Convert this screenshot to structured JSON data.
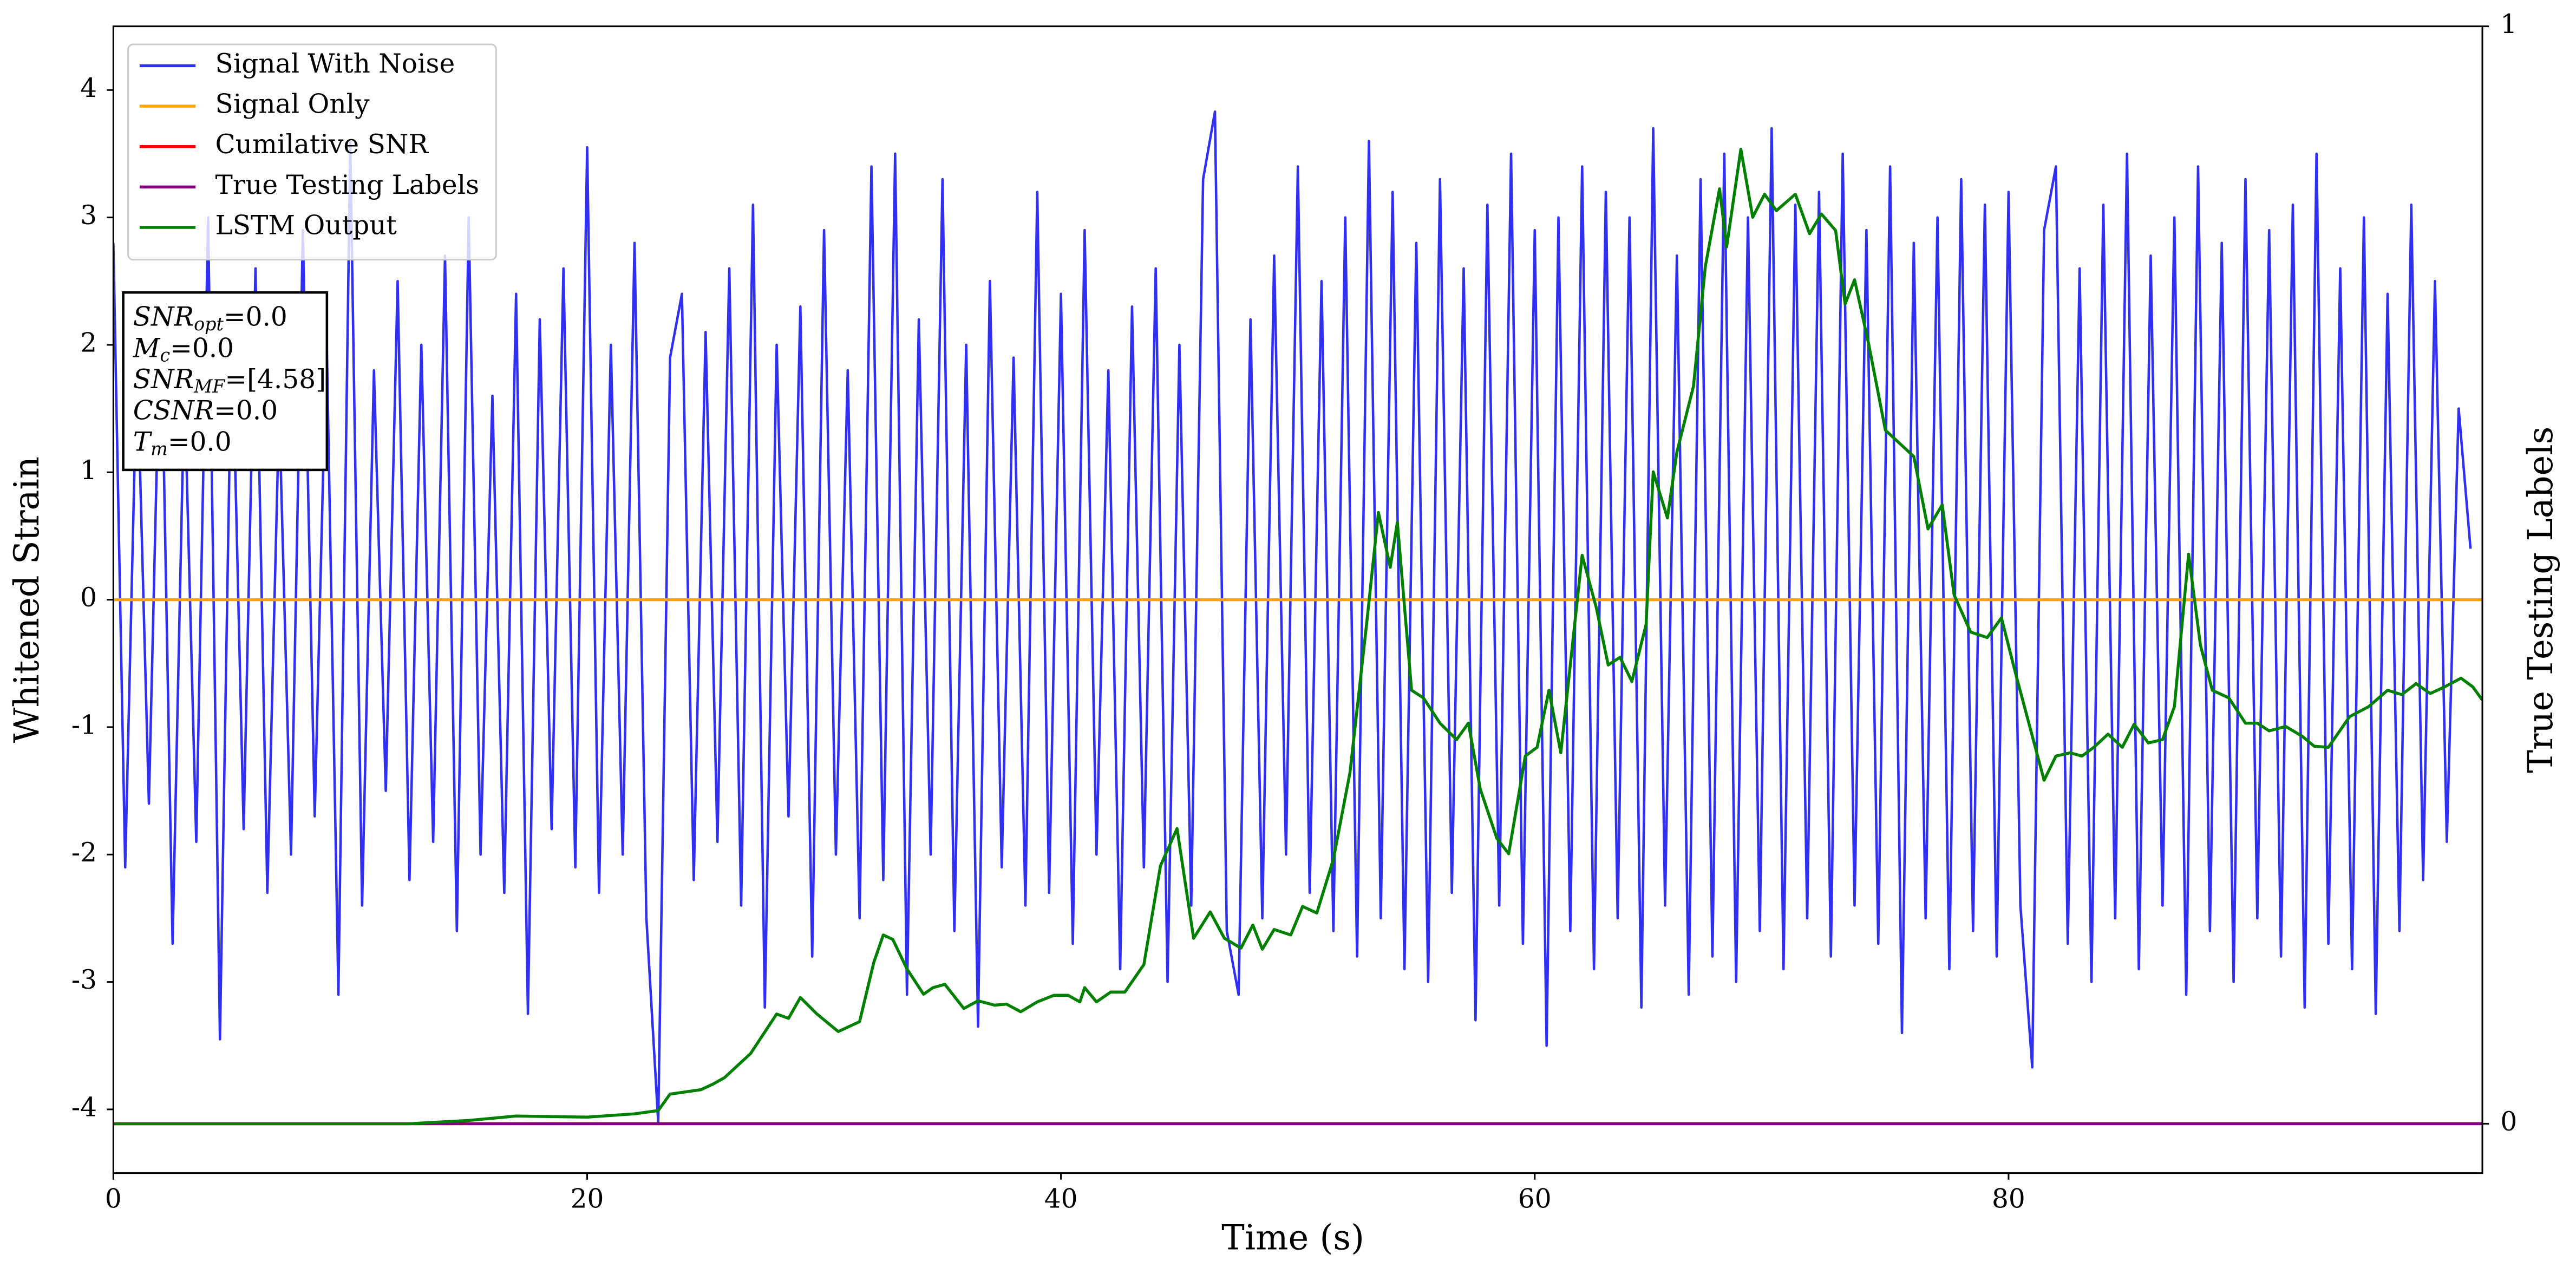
{
  "chart_data": {
    "type": "line",
    "xlabel": "Time (s)",
    "ylabel": "Whitened Strain",
    "y2label": "True Testing Labels",
    "xlim": [
      0,
      100
    ],
    "ylim": [
      -4.5,
      4.5
    ],
    "y2lim": [
      -0.045,
      1.0
    ],
    "xticks": [
      0,
      20,
      40,
      60,
      80
    ],
    "yticks": [
      -4,
      -3,
      -2,
      -1,
      0,
      1,
      2,
      3,
      4
    ],
    "y2ticks": [
      0,
      1
    ],
    "legend": "upper left",
    "annotation_lines": [
      {
        "base": "SNR",
        "sub": "opt",
        "rest": "=0.0"
      },
      {
        "base": "M",
        "sub": "c",
        "rest": "=0.0"
      },
      {
        "base": "SNR",
        "sub": "MF",
        "rest": "=[4.58]"
      },
      {
        "base": "CSNR",
        "rest": "=0.0"
      },
      {
        "base": "T",
        "sub": "m",
        "rest": "=0.0"
      }
    ],
    "series": [
      {
        "name": "Signal With Noise",
        "color": "#3030f5",
        "x": [
          0,
          0.5,
          1,
          1.5,
          2,
          2.5,
          3,
          3.5,
          4,
          4.5,
          5,
          5.5,
          6,
          6.5,
          7,
          7.5,
          8,
          8.5,
          9,
          9.5,
          10,
          10.5,
          11,
          11.5,
          12,
          12.5,
          13,
          13.5,
          14,
          14.5,
          15,
          15.5,
          16,
          16.5,
          17,
          17.5,
          18,
          18.5,
          19,
          19.5,
          20,
          20.5,
          21,
          21.5,
          22,
          22.5,
          23,
          23.5,
          24,
          24.5,
          25,
          25.5,
          26,
          26.5,
          27,
          27.5,
          28,
          28.5,
          29,
          29.5,
          30,
          30.5,
          31,
          31.5,
          32,
          32.5,
          33,
          33.5,
          34,
          34.5,
          35,
          35.5,
          36,
          36.5,
          37,
          37.5,
          38,
          38.5,
          39,
          39.5,
          40,
          40.5,
          41,
          41.5,
          42,
          42.5,
          43,
          43.5,
          44,
          44.5,
          45,
          45.5,
          46,
          46.5,
          47,
          47.5,
          48,
          48.5,
          49,
          49.5,
          50,
          50.5,
          51,
          51.5,
          52,
          52.5,
          53,
          53.5,
          54,
          54.5,
          55,
          55.5,
          56,
          56.5,
          57,
          57.5,
          58,
          58.5,
          59,
          59.5,
          60,
          60.5,
          61,
          61.5,
          62,
          62.5,
          63,
          63.5,
          64,
          64.5,
          65,
          65.5,
          66,
          66.5,
          67,
          67.5,
          68,
          68.5,
          69,
          69.5,
          70,
          70.5,
          71,
          71.5,
          72,
          72.5,
          73,
          73.5,
          74,
          74.5,
          75,
          75.5,
          76,
          76.5,
          77,
          77.5,
          78,
          78.5,
          79,
          79.5,
          80,
          80.5,
          81,
          81.5,
          82,
          82.5,
          83,
          83.5,
          84,
          84.5,
          85,
          85.5,
          86,
          86.5,
          87,
          87.5,
          88,
          88.5,
          89,
          89.5,
          90,
          90.5,
          91,
          91.5,
          92,
          92.5,
          93,
          93.5,
          94,
          94.5,
          95,
          95.5,
          96,
          96.5,
          97,
          97.5,
          98,
          98.5,
          99,
          99.5
        ],
        "values": [
          2.8,
          -2.1,
          1.9,
          -1.6,
          2.4,
          -2.7,
          1.7,
          -1.9,
          3.0,
          -3.45,
          2.2,
          -1.8,
          2.6,
          -2.3,
          1.5,
          -2.0,
          2.9,
          -1.7,
          2.1,
          -3.1,
          3.6,
          -2.4,
          1.8,
          -1.5,
          2.5,
          -2.2,
          2.0,
          -1.9,
          2.7,
          -2.6,
          3.0,
          -2.0,
          1.6,
          -2.3,
          2.4,
          -3.25,
          2.2,
          -1.8,
          2.6,
          -2.1,
          3.55,
          -2.3,
          2.0,
          -2.0,
          2.8,
          -2.5,
          -4.1,
          1.9,
          2.4,
          -2.2,
          2.1,
          -1.9,
          2.6,
          -2.4,
          3.1,
          -3.2,
          2.0,
          -1.7,
          2.3,
          -2.8,
          2.9,
          -2.0,
          1.8,
          -2.5,
          3.4,
          -2.2,
          3.5,
          -3.1,
          2.2,
          -2.0,
          3.3,
          -2.6,
          2.0,
          -3.35,
          2.5,
          -2.1,
          1.9,
          -2.4,
          3.2,
          -2.3,
          2.4,
          -2.7,
          2.9,
          -2.0,
          1.8,
          -2.9,
          2.3,
          -2.1,
          2.6,
          -3.0,
          2.0,
          -2.4,
          3.3,
          3.83,
          -2.6,
          -3.1,
          2.2,
          -2.5,
          2.7,
          -2.0,
          3.4,
          -2.3,
          2.5,
          -2.6,
          3.0,
          -2.8,
          3.6,
          -2.5,
          3.2,
          -2.9,
          2.8,
          -3.0,
          3.3,
          -2.3,
          2.6,
          -3.3,
          3.1,
          -2.4,
          3.5,
          -2.7,
          2.9,
          -3.5,
          3.0,
          -2.6,
          3.4,
          -2.9,
          3.2,
          -2.5,
          3.0,
          -3.2,
          3.7,
          -2.4,
          2.7,
          -3.1,
          3.3,
          -2.8,
          3.5,
          -3.0,
          3.0,
          -2.6,
          3.7,
          -2.9,
          3.1,
          -2.5,
          3.2,
          -2.8,
          3.5,
          -2.4,
          2.9,
          -2.7,
          3.4,
          -3.4,
          2.8,
          -2.5,
          3.0,
          -2.9,
          3.3,
          -2.6,
          3.1,
          -2.8,
          3.2,
          -2.4,
          -3.67,
          2.9,
          3.4,
          -2.7,
          2.6,
          -3.0,
          3.1,
          -2.5,
          3.5,
          -2.9,
          2.7,
          -2.4,
          3.0,
          -3.1,
          3.4,
          -2.6,
          2.8,
          -3.0,
          3.3,
          -2.5,
          2.9,
          -2.8,
          3.1,
          -3.2,
          3.5,
          -2.7,
          2.6,
          -2.9,
          3.0,
          -3.25,
          2.4,
          -2.6,
          3.1,
          -2.2,
          2.5,
          -1.9,
          1.5,
          0.4
        ]
      },
      {
        "name": "Signal Only",
        "color": "#ffa500",
        "x": [
          0,
          100
        ],
        "values": [
          0,
          0
        ]
      },
      {
        "name": "Cumilative SNR",
        "color": "#ff0000",
        "axis": "y2",
        "x": [
          0,
          100
        ],
        "values": [
          0,
          0
        ]
      },
      {
        "name": "True Testing Labels",
        "color": "#800080",
        "axis": "y2",
        "x": [
          0,
          100
        ],
        "values": [
          0,
          0
        ]
      },
      {
        "name": "LSTM Output",
        "color": "#008000",
        "axis": "y2",
        "x": [
          0,
          5,
          10,
          12.5,
          15,
          17,
          20,
          22,
          23,
          23.5,
          24.8,
          25.3,
          25.8,
          26.9,
          28.0,
          28.5,
          29.0,
          29.7,
          30.6,
          31.5,
          32.1,
          32.5,
          32.9,
          33.5,
          34.2,
          34.6,
          35.1,
          35.9,
          36.5,
          37.2,
          37.7,
          38.3,
          39.0,
          39.7,
          40.3,
          40.8,
          41.0,
          41.5,
          42.1,
          42.7,
          43.5,
          44.2,
          44.9,
          45.6,
          46.3,
          46.9,
          47.6,
          48.1,
          48.5,
          49.0,
          49.7,
          50.2,
          50.8,
          51.5,
          52.2,
          52.9,
          53.4,
          53.9,
          54.2,
          54.8,
          55.3,
          56.0,
          56.7,
          57.2,
          57.7,
          58.4,
          58.9,
          59.6,
          60.1,
          60.6,
          61.1,
          62.0,
          62.6,
          63.1,
          63.6,
          64.1,
          64.7,
          65.0,
          65.6,
          66.0,
          66.7,
          67.2,
          67.8,
          68.1,
          68.7,
          69.2,
          69.7,
          70.2,
          71.0,
          71.6,
          72.1,
          72.7,
          73.1,
          73.5,
          74.1,
          74.8,
          75.4,
          76.0,
          76.6,
          77.2,
          77.7,
          78.4,
          79.1,
          79.7,
          80.3,
          81.5,
          82.0,
          82.6,
          83.1,
          83.6,
          84.2,
          84.8,
          85.3,
          85.9,
          86.5,
          87.0,
          87.6,
          88.1,
          88.6,
          89.3,
          90.0,
          90.5,
          91.0,
          91.7,
          92.4,
          92.9,
          93.5,
          94.4,
          95.2,
          96.0,
          96.6,
          97.2,
          97.8,
          98.4,
          99.1,
          99.6,
          100
        ],
        "values": [
          0,
          0,
          0,
          0,
          0.003,
          0.007,
          0.006,
          0.009,
          0.012,
          0.027,
          0.031,
          0.036,
          0.042,
          0.064,
          0.1,
          0.096,
          0.115,
          0.1,
          0.084,
          0.093,
          0.147,
          0.172,
          0.168,
          0.141,
          0.118,
          0.124,
          0.127,
          0.105,
          0.112,
          0.108,
          0.109,
          0.102,
          0.111,
          0.117,
          0.117,
          0.111,
          0.124,
          0.111,
          0.12,
          0.12,
          0.145,
          0.235,
          0.269,
          0.169,
          0.193,
          0.169,
          0.16,
          0.181,
          0.159,
          0.177,
          0.172,
          0.198,
          0.192,
          0.241,
          0.32,
          0.455,
          0.557,
          0.507,
          0.548,
          0.395,
          0.388,
          0.365,
          0.35,
          0.365,
          0.305,
          0.26,
          0.246,
          0.335,
          0.343,
          0.395,
          0.338,
          0.518,
          0.47,
          0.418,
          0.425,
          0.403,
          0.455,
          0.594,
          0.552,
          0.612,
          0.672,
          0.781,
          0.852,
          0.799,
          0.888,
          0.826,
          0.847,
          0.832,
          0.847,
          0.811,
          0.829,
          0.814,
          0.747,
          0.769,
          0.71,
          0.632,
          0.62,
          0.608,
          0.542,
          0.564,
          0.482,
          0.448,
          0.443,
          0.461,
          0.41,
          0.313,
          0.335,
          0.338,
          0.335,
          0.343,
          0.355,
          0.343,
          0.364,
          0.347,
          0.35,
          0.38,
          0.519,
          0.436,
          0.395,
          0.388,
          0.365,
          0.365,
          0.358,
          0.362,
          0.353,
          0.344,
          0.343,
          0.371,
          0.38,
          0.395,
          0.391,
          0.401,
          0.392,
          0.398,
          0.406,
          0.398,
          0.386
        ]
      }
    ]
  }
}
